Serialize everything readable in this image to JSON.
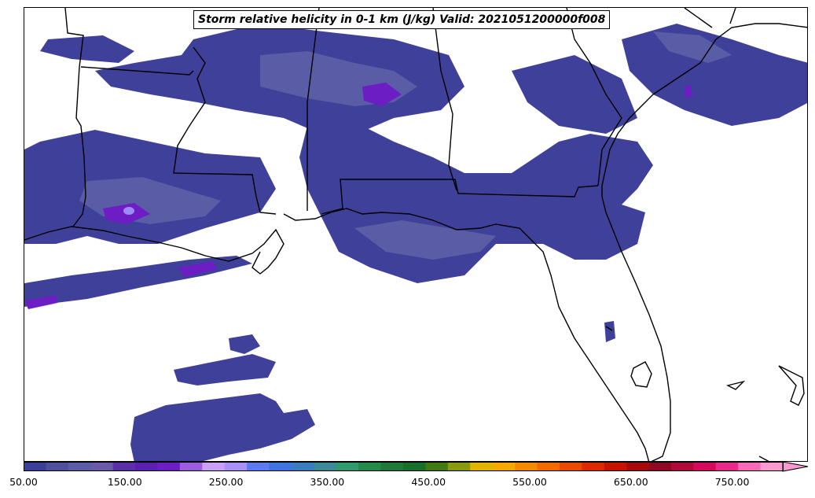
{
  "map": {
    "title": "Storm relative helicity in 0-1 km (J/kg) Valid: 2021051200000f008"
  },
  "colorbar": {
    "tick_labels": [
      "50.00",
      "150.00",
      "250.00",
      "350.00",
      "450.00",
      "550.00",
      "650.00",
      "750.00"
    ],
    "tick_values": [
      50,
      150,
      250,
      350,
      450,
      550,
      650,
      750
    ],
    "min": 50,
    "max": 800,
    "step": 25,
    "extend": "max",
    "colors": [
      "#3a3f99",
      "#4f4f9e",
      "#5a5ca6",
      "#6a5aa8",
      "#5a2fa8",
      "#5b1fb0",
      "#6d1dc4",
      "#9c5ce0",
      "#c9a0f5",
      "#a990f7",
      "#5a7cf0",
      "#3f74e0",
      "#3a7cc0",
      "#3a8a9a",
      "#2f9a6e",
      "#238a4a",
      "#1f7a3a",
      "#16702a",
      "#3f7a12",
      "#8a9a10",
      "#e0b400",
      "#f5a800",
      "#f58a00",
      "#f26a00",
      "#e84a00",
      "#de2a00",
      "#c81200",
      "#a80a0a",
      "#8e0a22",
      "#b00a3a",
      "#d60a5a",
      "#ea2a8a",
      "#f76ab8",
      "#fb9ad0"
    ]
  }
}
